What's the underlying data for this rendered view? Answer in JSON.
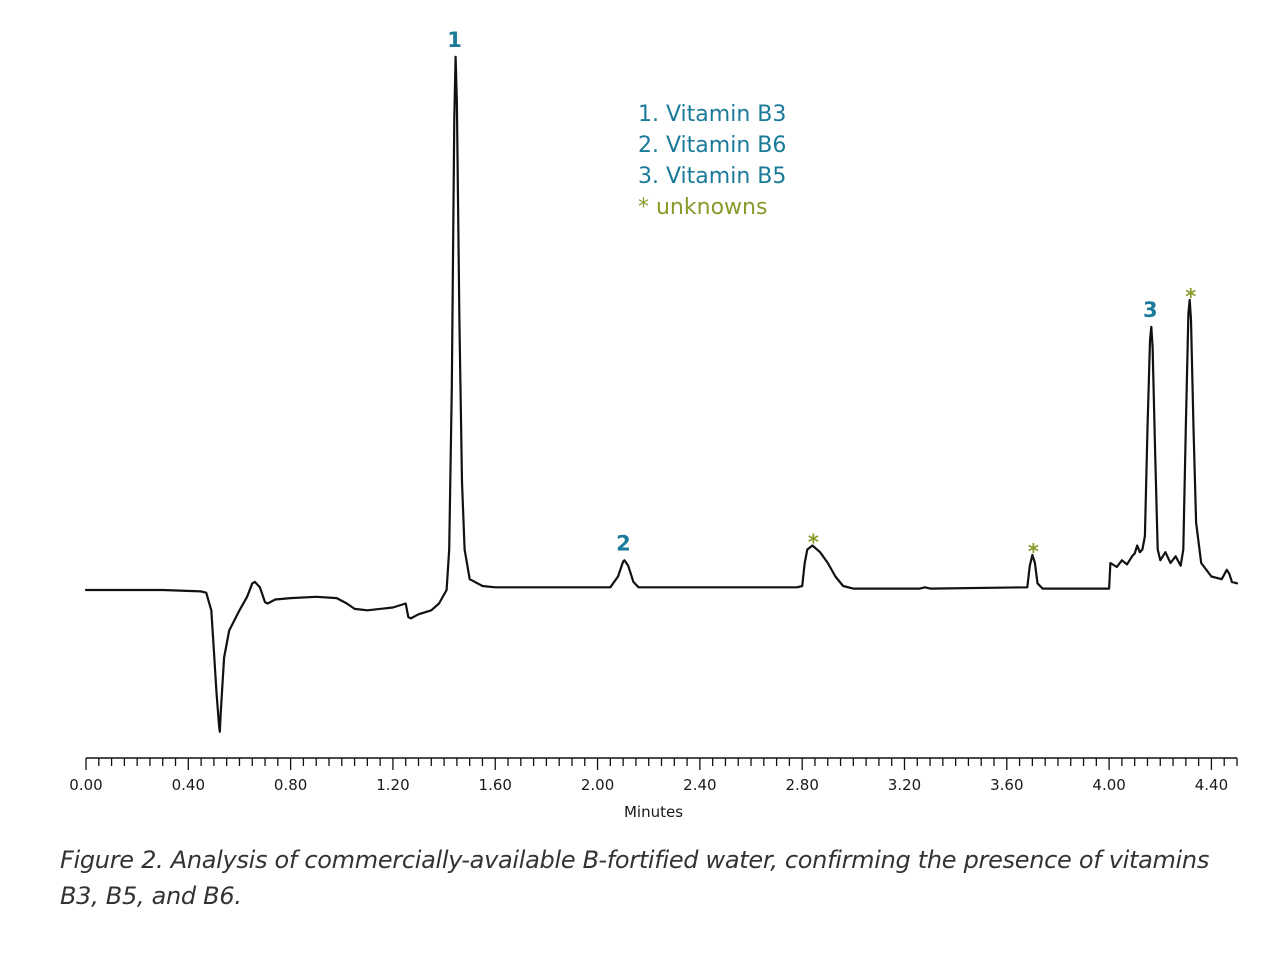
{
  "chart_data": {
    "type": "line",
    "title": "",
    "xlabel": "Minutes",
    "ylabel": "",
    "xlim": [
      0,
      4.5
    ],
    "ylim": [
      -1.1,
      4.2
    ],
    "x_ticks": [
      "0.00",
      "0.40",
      "0.80",
      "1.20",
      "1.60",
      "2.00",
      "2.40",
      "2.80",
      "3.20",
      "3.60",
      "4.00",
      "4.40"
    ],
    "x_tick_values": [
      0.0,
      0.4,
      0.8,
      1.2,
      1.6,
      2.0,
      2.4,
      2.8,
      3.2,
      3.6,
      4.0,
      4.4
    ],
    "minor_tick_step": 0.05,
    "grid": false,
    "legend_position": "top-center",
    "colors": {
      "trace": "#111111",
      "vitamin": "#1a7a99",
      "unknown": "#8a9a2a"
    },
    "legend": [
      {
        "text": "1. Vitamin B3",
        "kind": "vitamin"
      },
      {
        "text": "2. Vitamin B6",
        "kind": "vitamin"
      },
      {
        "text": "3. Vitamin B5",
        "kind": "vitamin"
      },
      {
        "text": "* unknowns",
        "kind": "unknown"
      }
    ],
    "peaks": [
      {
        "label": "1",
        "kind": "vitamin",
        "x": 1.445,
        "y": 3.95
      },
      {
        "label": "2",
        "kind": "vitamin",
        "x": 2.105,
        "y": 0.22
      },
      {
        "label": "*",
        "kind": "unknown",
        "x": 2.84,
        "y": 0.33
      },
      {
        "label": "*",
        "kind": "unknown",
        "x": 3.7,
        "y": 0.26
      },
      {
        "label": "3",
        "kind": "vitamin",
        "x": 4.165,
        "y": 1.95
      },
      {
        "label": "*",
        "kind": "unknown",
        "x": 4.315,
        "y": 2.15
      }
    ],
    "series": [
      {
        "points": [
          [
            0.0,
            0.0
          ],
          [
            0.3,
            0.0
          ],
          [
            0.45,
            -0.01
          ],
          [
            0.47,
            -0.02
          ],
          [
            0.49,
            -0.15
          ],
          [
            0.5,
            -0.45
          ],
          [
            0.51,
            -0.75
          ],
          [
            0.52,
            -1.0
          ],
          [
            0.523,
            -1.05
          ],
          [
            0.527,
            -0.9
          ],
          [
            0.54,
            -0.5
          ],
          [
            0.56,
            -0.3
          ],
          [
            0.6,
            -0.15
          ],
          [
            0.63,
            -0.05
          ],
          [
            0.65,
            0.05
          ],
          [
            0.66,
            0.06
          ],
          [
            0.68,
            0.02
          ],
          [
            0.7,
            -0.09
          ],
          [
            0.71,
            -0.1
          ],
          [
            0.74,
            -0.07
          ],
          [
            0.8,
            -0.06
          ],
          [
            0.9,
            -0.05
          ],
          [
            0.98,
            -0.06
          ],
          [
            1.02,
            -0.1
          ],
          [
            1.05,
            -0.14
          ],
          [
            1.1,
            -0.15
          ],
          [
            1.2,
            -0.13
          ],
          [
            1.25,
            -0.1
          ],
          [
            1.26,
            -0.2
          ],
          [
            1.27,
            -0.21
          ],
          [
            1.3,
            -0.18
          ],
          [
            1.35,
            -0.15
          ],
          [
            1.38,
            -0.1
          ],
          [
            1.41,
            0.0
          ],
          [
            1.42,
            0.3
          ],
          [
            1.43,
            1.5
          ],
          [
            1.44,
            3.5
          ],
          [
            1.445,
            3.95
          ],
          [
            1.45,
            3.6
          ],
          [
            1.46,
            2.0
          ],
          [
            1.47,
            0.8
          ],
          [
            1.48,
            0.3
          ],
          [
            1.5,
            0.08
          ],
          [
            1.55,
            0.03
          ],
          [
            1.6,
            0.02
          ],
          [
            1.8,
            0.02
          ],
          [
            2.05,
            0.02
          ],
          [
            2.08,
            0.1
          ],
          [
            2.1,
            0.21
          ],
          [
            2.105,
            0.22
          ],
          [
            2.12,
            0.18
          ],
          [
            2.14,
            0.06
          ],
          [
            2.16,
            0.02
          ],
          [
            2.5,
            0.02
          ],
          [
            2.78,
            0.02
          ],
          [
            2.8,
            0.03
          ],
          [
            2.81,
            0.2
          ],
          [
            2.82,
            0.3
          ],
          [
            2.84,
            0.33
          ],
          [
            2.87,
            0.28
          ],
          [
            2.9,
            0.2
          ],
          [
            2.93,
            0.1
          ],
          [
            2.96,
            0.03
          ],
          [
            3.0,
            0.01
          ],
          [
            3.26,
            0.01
          ],
          [
            3.28,
            0.02
          ],
          [
            3.3,
            0.01
          ],
          [
            3.68,
            0.02
          ],
          [
            3.69,
            0.18
          ],
          [
            3.7,
            0.26
          ],
          [
            3.71,
            0.2
          ],
          [
            3.72,
            0.05
          ],
          [
            3.74,
            0.01
          ],
          [
            3.99,
            0.01
          ],
          [
            4.0,
            0.01
          ],
          [
            4.005,
            0.2
          ],
          [
            4.03,
            0.17
          ],
          [
            4.05,
            0.22
          ],
          [
            4.07,
            0.19
          ],
          [
            4.09,
            0.25
          ],
          [
            4.1,
            0.27
          ],
          [
            4.11,
            0.33
          ],
          [
            4.12,
            0.28
          ],
          [
            4.13,
            0.3
          ],
          [
            4.14,
            0.4
          ],
          [
            4.15,
            1.2
          ],
          [
            4.16,
            1.85
          ],
          [
            4.165,
            1.95
          ],
          [
            4.17,
            1.8
          ],
          [
            4.18,
            1.0
          ],
          [
            4.19,
            0.3
          ],
          [
            4.2,
            0.22
          ],
          [
            4.22,
            0.28
          ],
          [
            4.24,
            0.2
          ],
          [
            4.26,
            0.25
          ],
          [
            4.28,
            0.18
          ],
          [
            4.29,
            0.3
          ],
          [
            4.3,
            1.2
          ],
          [
            4.31,
            2.05
          ],
          [
            4.315,
            2.15
          ],
          [
            4.32,
            2.0
          ],
          [
            4.33,
            1.2
          ],
          [
            4.34,
            0.5
          ],
          [
            4.36,
            0.2
          ],
          [
            4.4,
            0.1
          ],
          [
            4.44,
            0.08
          ],
          [
            4.46,
            0.15
          ],
          [
            4.47,
            0.12
          ],
          [
            4.48,
            0.06
          ],
          [
            4.5,
            0.05
          ]
        ]
      }
    ]
  },
  "caption": "Figure 2. Analysis of commercially-available B-fortified water, confirming the presence of vitamins B3, B5, and B6."
}
